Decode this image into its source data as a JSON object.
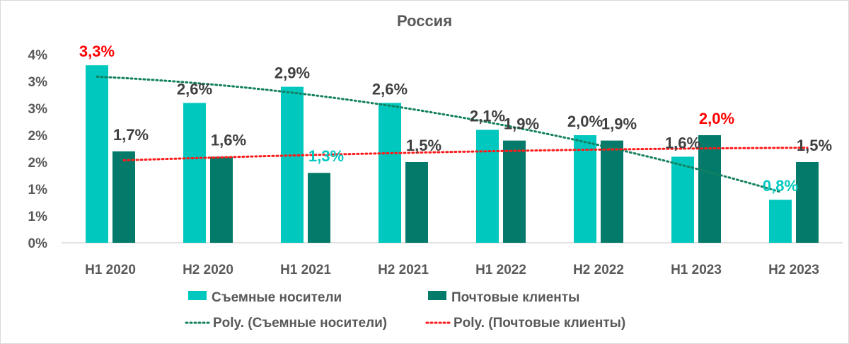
{
  "chart_data": {
    "type": "bar",
    "title": "Россия",
    "categories": [
      "H1 2020",
      "H2 2020",
      "H1 2021",
      "H2 2021",
      "H1 2022",
      "H2 2022",
      "H1 2023",
      "H2 2023"
    ],
    "series": [
      {
        "name": "Съемные носители",
        "values": [
          3.3,
          2.6,
          2.9,
          2.6,
          2.1,
          2.0,
          1.6,
          0.8
        ],
        "labels": [
          "3,3%",
          "2,6%",
          "2,9%",
          "2,6%",
          "2,1%",
          "2,0%",
          "1,6%",
          "0,8%"
        ],
        "label_colors": [
          "#ff0000",
          "#404040",
          "#404040",
          "#404040",
          "#404040",
          "#404040",
          "#404040",
          "#00c8be"
        ],
        "color": "#00c8be"
      },
      {
        "name": "Почтовые клиенты",
        "values": [
          1.7,
          1.6,
          1.3,
          1.5,
          1.9,
          1.9,
          2.0,
          1.5
        ],
        "labels": [
          "1,7%",
          "1,6%",
          "1,3%",
          "1,5%",
          "1,9%",
          "1,9%",
          "2,0%",
          "1,5%"
        ],
        "label_colors": [
          "#404040",
          "#404040",
          "#00c8be",
          "#404040",
          "#404040",
          "#404040",
          "#ff0000",
          "#404040"
        ],
        "color": "#047b6a"
      }
    ],
    "trendlines": [
      {
        "name": "Poly. (Съемные носители)",
        "color": "#138060",
        "style": "dotted",
        "fit": "polynomial"
      },
      {
        "name": "Poly. (Почтовые клиенты)",
        "color": "#ff1a1a",
        "style": "dotted",
        "fit": "polynomial"
      }
    ],
    "y_ticks": [
      "0%",
      "1%",
      "1%",
      "2%",
      "2%",
      "3%",
      "3%",
      "4%"
    ],
    "ylim": [
      0,
      3.5
    ],
    "grid": false,
    "legend_position": "bottom"
  }
}
